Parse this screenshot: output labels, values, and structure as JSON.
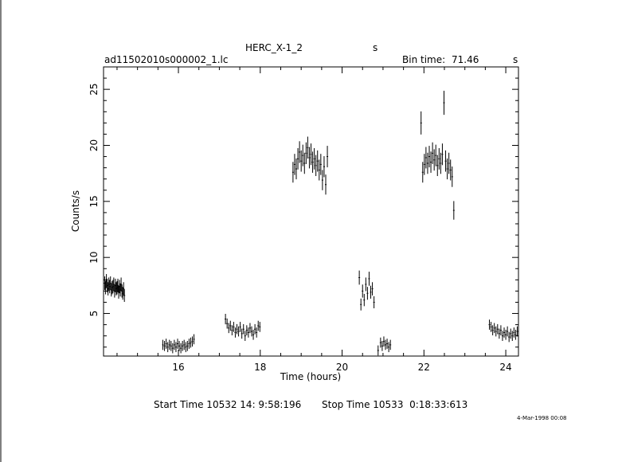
{
  "header": {
    "title_left": "HERC_X-1_2",
    "title_right": "s",
    "filename": "ad11502010s000002_1.lc",
    "bin_time_label": "Bin time:",
    "bin_time_value": "71.46",
    "bin_time_unit": "s"
  },
  "footer": {
    "start_label": "Start Time 10532 14: 9:58:196",
    "stop_label": "Stop Time 10533  0:18:33:613",
    "date_stamp": "4-Mar-1998 00:08"
  },
  "colors": {
    "axis": "#000000",
    "data": "#000000",
    "background": "#ffffff"
  },
  "chart_data": {
    "type": "scatter",
    "title": "HERC_X-1_2",
    "xlabel": "Time (hours)",
    "ylabel": "Counts/s",
    "xlim": [
      14.17,
      24.31
    ],
    "ylim": [
      1.2,
      27.0
    ],
    "x_ticks": [
      16,
      18,
      20,
      22,
      24
    ],
    "y_ticks": [
      5,
      10,
      15,
      20,
      25
    ],
    "x_minor_step": 0.5,
    "y_minor_step": 1,
    "error_bars": true,
    "grid": false,
    "series": [
      {
        "points": [
          [
            14.2,
            7.7
          ],
          [
            14.22,
            7.3
          ],
          [
            14.24,
            7.9
          ],
          [
            14.26,
            7.5
          ],
          [
            14.28,
            7.2
          ],
          [
            14.3,
            7.6
          ],
          [
            14.32,
            7.4
          ],
          [
            14.34,
            7.7
          ],
          [
            14.36,
            7.1
          ],
          [
            14.38,
            7.3
          ],
          [
            14.4,
            7.4
          ],
          [
            14.42,
            7.6
          ],
          [
            14.44,
            7.0
          ],
          [
            14.46,
            7.5
          ],
          [
            14.48,
            7.2
          ],
          [
            14.5,
            7.3
          ],
          [
            14.52,
            7.5
          ],
          [
            14.54,
            6.9
          ],
          [
            14.56,
            7.4
          ],
          [
            14.58,
            7.1
          ],
          [
            14.6,
            7.6
          ],
          [
            14.62,
            7.0
          ],
          [
            14.64,
            6.8
          ],
          [
            14.66,
            7.2
          ],
          [
            14.68,
            6.6
          ],
          [
            15.62,
            2.2
          ],
          [
            15.66,
            2.1
          ],
          [
            15.7,
            2.3
          ],
          [
            15.74,
            2.0
          ],
          [
            15.78,
            2.2
          ],
          [
            15.82,
            2.1
          ],
          [
            15.86,
            1.9
          ],
          [
            15.9,
            2.2
          ],
          [
            15.94,
            2.0
          ],
          [
            15.98,
            2.3
          ],
          [
            16.02,
            2.1
          ],
          [
            16.06,
            1.9
          ],
          [
            16.1,
            2.1
          ],
          [
            16.14,
            2.2
          ],
          [
            16.18,
            2.0
          ],
          [
            16.22,
            2.1
          ],
          [
            16.26,
            2.3
          ],
          [
            16.3,
            2.4
          ],
          [
            16.34,
            2.5
          ],
          [
            16.38,
            2.7
          ],
          [
            17.15,
            4.5
          ],
          [
            17.19,
            4.1
          ],
          [
            17.23,
            3.7
          ],
          [
            17.27,
            3.9
          ],
          [
            17.31,
            3.5
          ],
          [
            17.35,
            3.8
          ],
          [
            17.39,
            3.3
          ],
          [
            17.43,
            3.6
          ],
          [
            17.47,
            3.4
          ],
          [
            17.51,
            3.8
          ],
          [
            17.55,
            3.2
          ],
          [
            17.59,
            3.6
          ],
          [
            17.63,
            3.0
          ],
          [
            17.67,
            3.5
          ],
          [
            17.71,
            3.3
          ],
          [
            17.75,
            3.7
          ],
          [
            17.79,
            3.4
          ],
          [
            17.83,
            3.1
          ],
          [
            17.87,
            3.6
          ],
          [
            17.91,
            3.3
          ],
          [
            17.95,
            3.9
          ],
          [
            17.99,
            3.8
          ],
          [
            18.8,
            17.6
          ],
          [
            18.84,
            18.3
          ],
          [
            18.88,
            17.9
          ],
          [
            18.92,
            18.8
          ],
          [
            18.96,
            19.4
          ],
          [
            19.0,
            18.6
          ],
          [
            19.04,
            19.1
          ],
          [
            19.08,
            18.4
          ],
          [
            19.12,
            19.3
          ],
          [
            19.16,
            19.8
          ],
          [
            19.2,
            18.9
          ],
          [
            19.24,
            19.2
          ],
          [
            19.28,
            18.5
          ],
          [
            19.32,
            18.8
          ],
          [
            19.36,
            18.2
          ],
          [
            19.4,
            18.6
          ],
          [
            19.44,
            17.8
          ],
          [
            19.48,
            18.3
          ],
          [
            19.52,
            16.9
          ],
          [
            19.56,
            18.1
          ],
          [
            19.6,
            16.5
          ],
          [
            19.64,
            19.0
          ],
          [
            20.42,
            8.2
          ],
          [
            20.46,
            5.8
          ],
          [
            20.5,
            7.0
          ],
          [
            20.54,
            6.2
          ],
          [
            20.58,
            7.6
          ],
          [
            20.62,
            6.8
          ],
          [
            20.66,
            8.1
          ],
          [
            20.7,
            6.9
          ],
          [
            20.74,
            7.2
          ],
          [
            20.78,
            6.0
          ],
          [
            20.88,
            1.7
          ],
          [
            20.94,
            2.4
          ],
          [
            20.98,
            2.1
          ],
          [
            21.02,
            2.5
          ],
          [
            21.06,
            2.2
          ],
          [
            21.1,
            2.3
          ],
          [
            21.14,
            2.0
          ],
          [
            21.18,
            2.2
          ],
          [
            21.93,
            22.0
          ],
          [
            21.97,
            17.6
          ],
          [
            22.01,
            18.3
          ],
          [
            22.05,
            18.9
          ],
          [
            22.09,
            18.4
          ],
          [
            22.13,
            19.0
          ],
          [
            22.17,
            18.5
          ],
          [
            22.21,
            19.3
          ],
          [
            22.25,
            18.7
          ],
          [
            22.29,
            19.1
          ],
          [
            22.33,
            18.2
          ],
          [
            22.37,
            18.8
          ],
          [
            22.41,
            18.4
          ],
          [
            22.45,
            19.2
          ],
          [
            22.49,
            23.8
          ],
          [
            22.53,
            18.6
          ],
          [
            22.57,
            17.9
          ],
          [
            22.61,
            18.4
          ],
          [
            22.65,
            17.8
          ],
          [
            22.69,
            17.2
          ],
          [
            22.73,
            14.2
          ],
          [
            23.6,
            4.0
          ],
          [
            23.64,
            3.8
          ],
          [
            23.68,
            3.5
          ],
          [
            23.72,
            3.7
          ],
          [
            23.76,
            3.4
          ],
          [
            23.8,
            3.6
          ],
          [
            23.84,
            3.2
          ],
          [
            23.88,
            3.5
          ],
          [
            23.92,
            3.0
          ],
          [
            23.96,
            3.3
          ],
          [
            24.0,
            3.1
          ],
          [
            24.04,
            3.4
          ],
          [
            24.08,
            2.9
          ],
          [
            24.12,
            3.2
          ],
          [
            24.16,
            3.0
          ],
          [
            24.2,
            3.3
          ],
          [
            24.24,
            3.1
          ],
          [
            24.28,
            3.4
          ]
        ]
      }
    ]
  }
}
